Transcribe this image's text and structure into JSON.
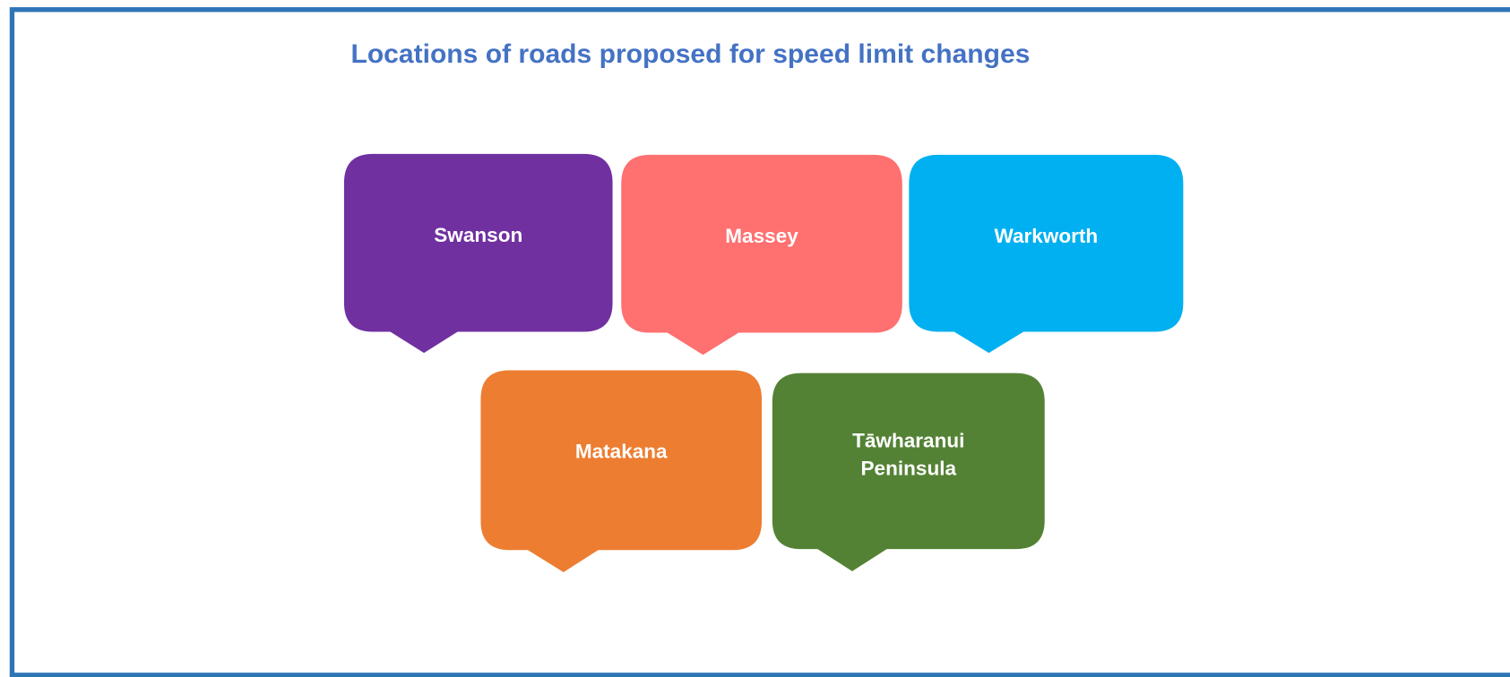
{
  "title": "Locations of roads proposed for speed limit changes",
  "nodes": [
    {
      "lines": [
        "Swanson"
      ]
    },
    {
      "lines": [
        "Massey"
      ]
    },
    {
      "lines": [
        "Warkworth"
      ]
    },
    {
      "lines": [
        "Matakana"
      ]
    },
    {
      "lines": [
        "Tāwharanui",
        "Peninsula"
      ]
    }
  ]
}
